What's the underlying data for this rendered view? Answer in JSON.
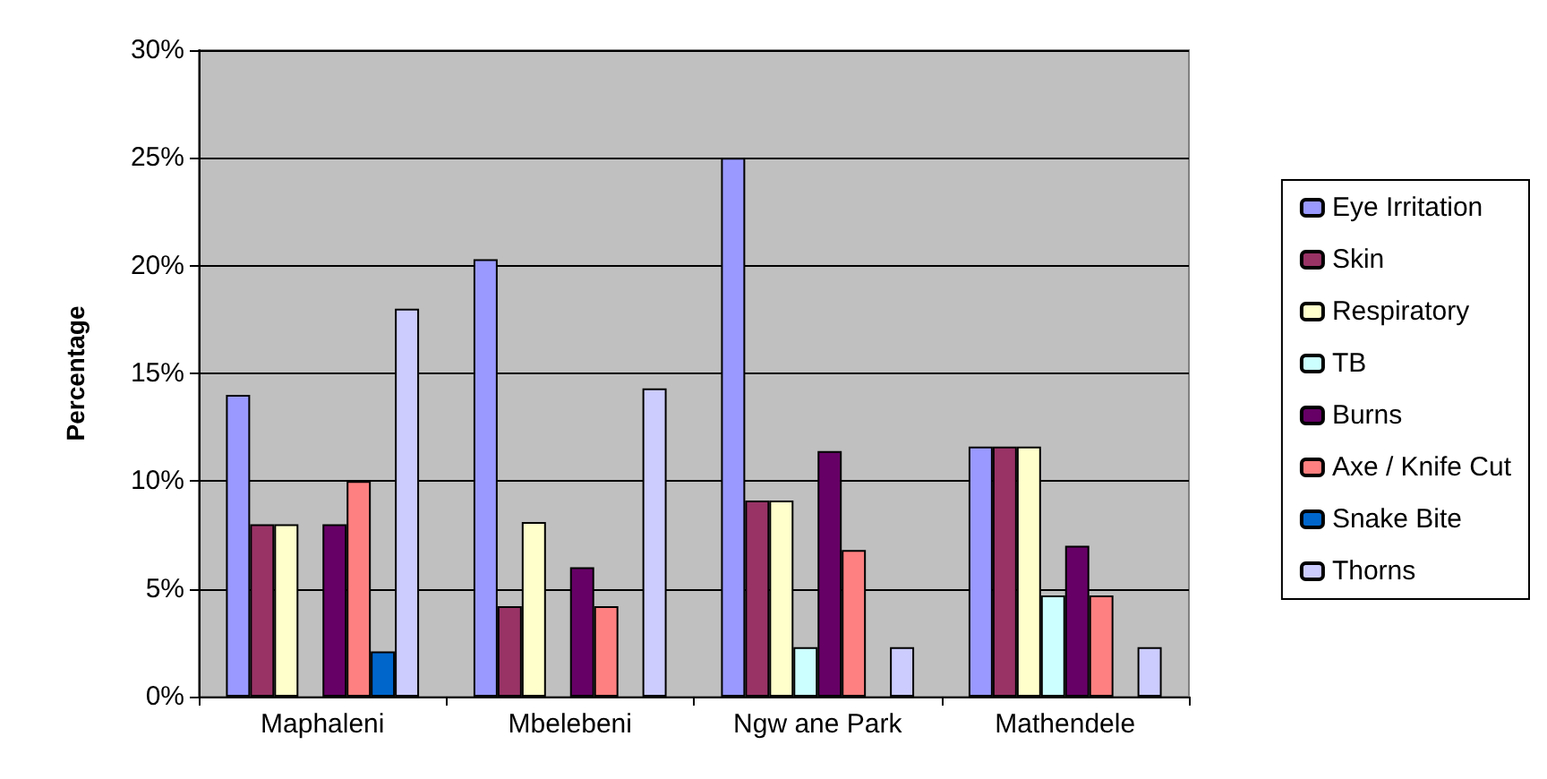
{
  "chart_data": {
    "type": "bar",
    "ylabel": "Percentage",
    "categories": [
      "Maphaleni",
      "Mbelebeni",
      "Ngw ane Park",
      "Mathendele"
    ],
    "series": [
      {
        "name": "Eye Irritation",
        "color": "#9999ff",
        "values": [
          14,
          20.3,
          25,
          11.6
        ]
      },
      {
        "name": "Skin",
        "color": "#993366",
        "values": [
          8,
          4.2,
          9.1,
          11.6
        ]
      },
      {
        "name": "Respiratory",
        "color": "#ffffcc",
        "values": [
          8,
          8.1,
          9.1,
          11.6
        ]
      },
      {
        "name": "TB",
        "color": "#ccffff",
        "values": [
          0,
          0,
          2.3,
          4.7
        ]
      },
      {
        "name": "Burns",
        "color": "#660066",
        "values": [
          8,
          6,
          11.4,
          7
        ]
      },
      {
        "name": "Axe / Knife Cut",
        "color": "#ff8080",
        "values": [
          10,
          4.2,
          6.8,
          4.7
        ]
      },
      {
        "name": "Snake Bite",
        "color": "#0066cc",
        "values": [
          2.1,
          0,
          0,
          0
        ]
      },
      {
        "name": "Thorns",
        "color": "#ccccff",
        "values": [
          18,
          14.3,
          2.3,
          2.3
        ]
      }
    ],
    "ylim": [
      0,
      30
    ],
    "yticks": [
      {
        "value": 0,
        "label": "0%"
      },
      {
        "value": 5,
        "label": "5%"
      },
      {
        "value": 10,
        "label": "10%"
      },
      {
        "value": 15,
        "label": "15%"
      },
      {
        "value": 20,
        "label": "20%"
      },
      {
        "value": 25,
        "label": "25%"
      },
      {
        "value": 30,
        "label": "30%"
      }
    ],
    "grid": "y",
    "legend": "right"
  }
}
